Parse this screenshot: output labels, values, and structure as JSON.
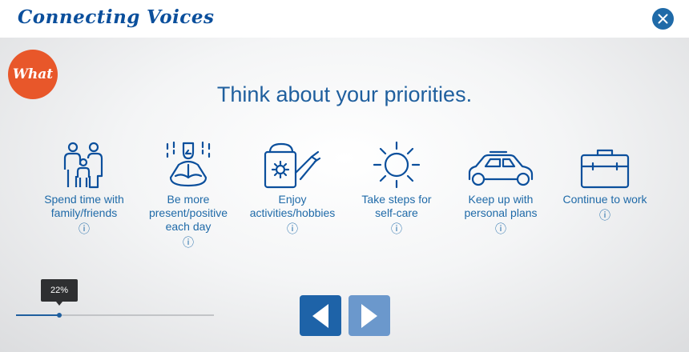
{
  "header": {
    "brand_part1": "Connecting",
    "brand_part2": "Voices",
    "close_icon": "close-icon"
  },
  "badge": {
    "label": "What"
  },
  "title": "Think about your priorities.",
  "options": [
    {
      "label": "Spend time with\nfamily/friends",
      "icon": "family-icon",
      "info": "ⓘ"
    },
    {
      "label": "Be more\npresent/positive\neach day",
      "icon": "meditation-icon",
      "info": "ⓘ"
    },
    {
      "label": "Enjoy\nactivities/hobbies",
      "icon": "watering-can-icon",
      "info": "ⓘ"
    },
    {
      "label": "Take steps for\nself-care",
      "icon": "sun-icon",
      "info": "ⓘ"
    },
    {
      "label": "Keep up with\npersonal plans",
      "icon": "car-icon",
      "info": "ⓘ"
    },
    {
      "label": "Continue to work",
      "icon": "briefcase-icon",
      "info": "ⓘ"
    }
  ],
  "progress": {
    "label": "22%",
    "value": 0.22
  },
  "navigation": {
    "prev_icon": "triangle-left-icon",
    "next_icon": "triangle-right-icon"
  },
  "colors": {
    "brand": "#0b4f9c",
    "accent": "#1f6aa8",
    "badge": "#e8572a",
    "nav_prev": "#1e63a8",
    "nav_next": "#6b98cc"
  }
}
